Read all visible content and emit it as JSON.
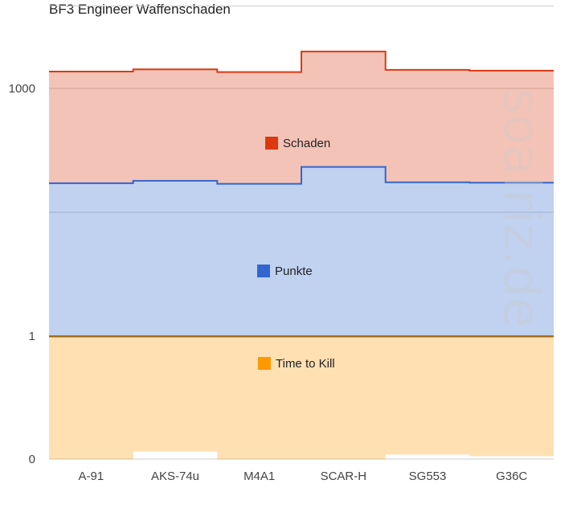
{
  "chart_data": {
    "type": "area",
    "title": "BF3 Engineer Waffenschaden",
    "categories": [
      "A-91",
      "AKS-74u",
      "M4A1",
      "SCAR-H",
      "SG553",
      "G36C"
    ],
    "y_scale": "log",
    "y_ticks": [
      {
        "value": 0,
        "label": "0"
      },
      {
        "value": 1,
        "label": "1"
      },
      {
        "value": 1000,
        "label": "1000"
      }
    ],
    "series": [
      {
        "name": "Time to Kill",
        "values": [
          0.21,
          0.26,
          0.21,
          0.21,
          0.24,
          0.23
        ],
        "color": "#ff9900"
      },
      {
        "name": "Punkte",
        "values": [
          71,
          76,
          70,
          112,
          73,
          72
        ],
        "color": "#3366cc"
      },
      {
        "name": "Schaden",
        "values": [
          1600,
          1700,
          1580,
          2800,
          1680,
          1640
        ],
        "color": "#dc3912"
      }
    ],
    "grid": true,
    "legend_position": "inside"
  },
  "watermark": "soalriz.de"
}
